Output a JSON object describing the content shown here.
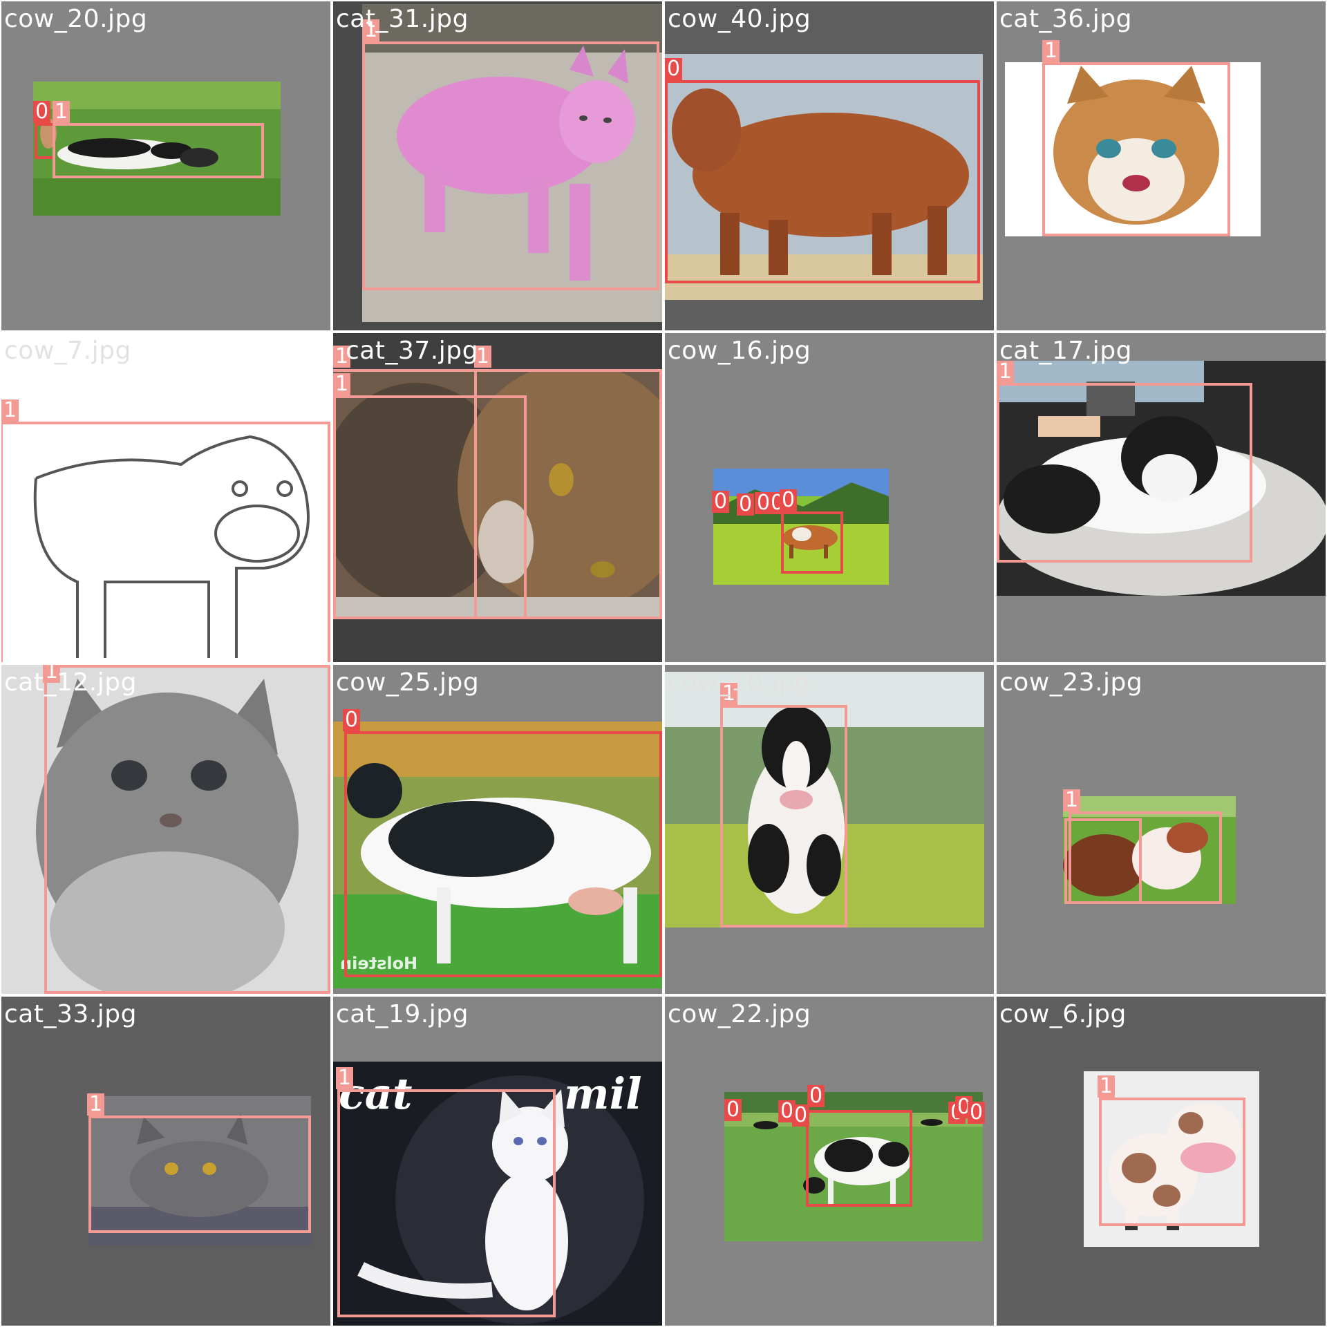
{
  "tiles": [
    {
      "name": "cow_20.jpg",
      "labels": [
        "0",
        "1"
      ]
    },
    {
      "name": "cat_31.jpg",
      "labels": [
        "1"
      ]
    },
    {
      "name": "cow_40.jpg",
      "labels": [
        "0"
      ]
    },
    {
      "name": "cat_36.jpg",
      "labels": [
        "1"
      ]
    },
    {
      "name": "cow_7.jpg",
      "labels": [
        "1"
      ]
    },
    {
      "name": "cat_37.jpg",
      "labels": [
        "1",
        "1",
        "1"
      ]
    },
    {
      "name": "cow_16.jpg",
      "labels": [
        "0",
        "0",
        "0",
        "0",
        "0"
      ]
    },
    {
      "name": "cat_17.jpg",
      "labels": [
        "1"
      ]
    },
    {
      "name": "cat_12.jpg",
      "labels": [
        "1"
      ]
    },
    {
      "name": "cow_25.jpg",
      "labels": [
        "0"
      ]
    },
    {
      "name": "cow_10.jpg",
      "labels": [
        "1"
      ]
    },
    {
      "name": "cow_23.jpg",
      "labels": [
        "1"
      ]
    },
    {
      "name": "cat_33.jpg",
      "labels": [
        "1"
      ]
    },
    {
      "name": "cat_19.jpg",
      "labels": [
        "1"
      ]
    },
    {
      "name": "cow_22.jpg",
      "labels": [
        "0",
        "0",
        "0",
        "0",
        "0",
        "0",
        "0"
      ]
    },
    {
      "name": "cow_6.jpg",
      "labels": [
        "1"
      ]
    }
  ],
  "photo_text": {
    "cow_25_watermark": "Holstein",
    "cat_19_word_left": "cat",
    "cat_19_word_right": "mil"
  },
  "colors": {
    "class_0": "#e84a4a",
    "class_1": "#f29a93",
    "tile_name": "#ffffff"
  }
}
